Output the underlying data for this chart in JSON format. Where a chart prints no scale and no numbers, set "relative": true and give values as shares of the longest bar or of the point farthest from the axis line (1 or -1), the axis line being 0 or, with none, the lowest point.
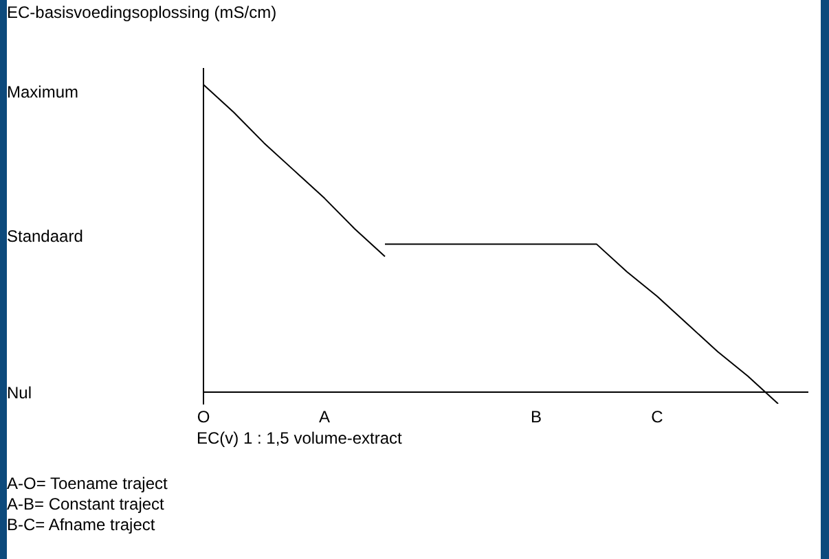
{
  "chart_data": {
    "type": "line",
    "relative": true,
    "ylabel": "EC-basisvoedingsoplossing (mS/cm)",
    "xlabel": "EC(v) 1 : 1,5 volume-extract",
    "categories": [
      "O",
      null,
      null,
      null,
      "A",
      null,
      null,
      null,
      null,
      null,
      null,
      "B",
      null,
      null,
      null,
      "C",
      null,
      null,
      null,
      null,
      null
    ],
    "series": [
      {
        "color": "#000000",
        "values": [
          1,
          0.91,
          0.81,
          0.72,
          0.63,
          0.53,
          0.44,
          null,
          null,
          null,
          null,
          null,
          null,
          null,
          null,
          null,
          null,
          null,
          null,
          null,
          null
        ]
      },
      {
        "color": "#000000",
        "values": [
          null,
          null,
          null,
          null,
          null,
          null,
          0.48,
          0.48,
          0.48,
          0.48,
          0.48,
          0.48,
          0.48,
          0.48,
          0.39,
          0.31,
          0.22,
          0.13,
          0.05,
          -0.04,
          null
        ]
      }
    ],
    "annotations": [
      "Maximum",
      "Standaard",
      "Nul",
      "A-O= Toename traject",
      "A-B= Constant traject",
      "B-C= Afname traject"
    ],
    "grid": false,
    "legend": false,
    "marker": "none",
    "line_style": "solid"
  }
}
